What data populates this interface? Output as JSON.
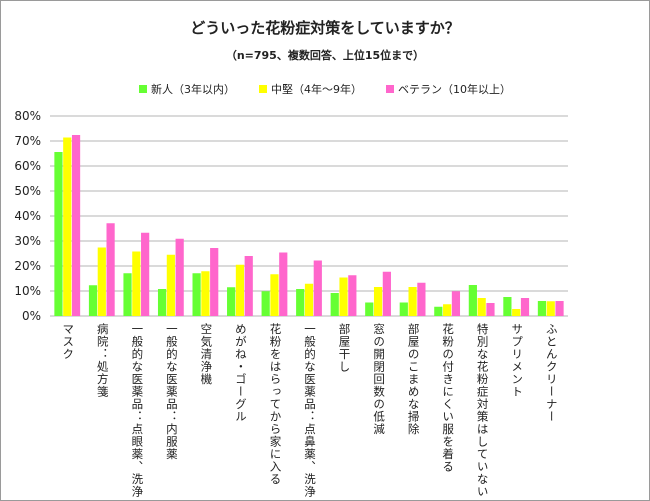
{
  "chart_data": {
    "type": "bar",
    "title": "どういった花粉症対策をしていますか？",
    "subtitle": "（n=795、複数回答、上位15位まで）",
    "categories": [
      "マスク",
      "病院：処方箋",
      "一般的な医薬品：点眼薬、洗浄",
      "一般的な医薬品：内服薬",
      "空気清浄機",
      "めがね・ゴーグル",
      "花粉をはらってから家に入る",
      "一般的な医薬品：点鼻薬、洗浄",
      "部屋干し",
      "窓の開閉回数の低減",
      "部屋のこまめな掃除",
      "花粉の付きにくい服を着る",
      "特別な花粉症対策はしていない",
      "サプリメント",
      "ふとんクリーナー"
    ],
    "series": [
      {
        "name": "新人（3年以内）",
        "color": "#66ff33",
        "values": [
          65.6,
          12.3,
          17.1,
          10.8,
          17.1,
          11.5,
          9.9,
          10.8,
          9.2,
          5.4,
          5.4,
          3.7,
          12.4,
          7.6,
          6.0
        ]
      },
      {
        "name": "中堅（4年～9年）",
        "color": "#ffff00",
        "values": [
          71.4,
          27.4,
          25.8,
          24.5,
          17.9,
          20.5,
          16.7,
          12.9,
          15.4,
          11.6,
          11.6,
          4.7,
          7.2,
          2.8,
          5.9
        ]
      },
      {
        "name": "ベテラン（10年以上）",
        "color": "#ff66cc",
        "values": [
          72.4,
          37.1,
          33.3,
          30.9,
          27.2,
          24.0,
          25.4,
          22.2,
          16.3,
          17.7,
          13.3,
          9.9,
          5.2,
          7.2,
          6.0
        ]
      }
    ],
    "yticks": [
      "0%",
      "10%",
      "20%",
      "30%",
      "40%",
      "50%",
      "60%",
      "70%",
      "80%"
    ],
    "ylim": [
      0,
      80
    ],
    "grid": true,
    "legend": "top"
  }
}
